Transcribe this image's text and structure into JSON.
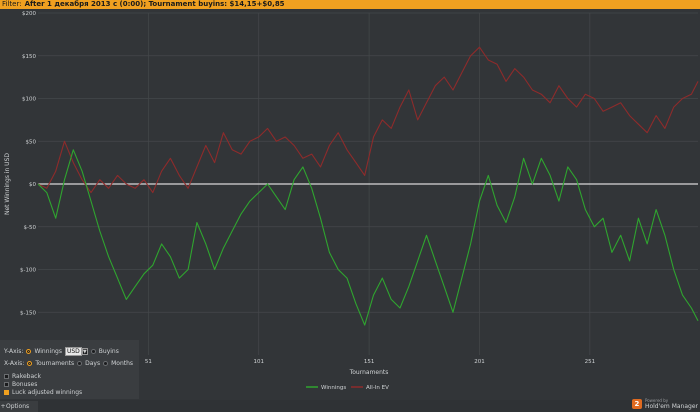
{
  "filter": {
    "label": "Filter:",
    "text": "After 1 декабря 2013 с (0:00); Tournament buyins: $14,15+$0,85"
  },
  "colors": {
    "winnings": "#2fa52f",
    "allin_ev": "#8e2b2b",
    "zero_line": "#d8d8d8",
    "grid": "#45484b",
    "accent": "#f0a020"
  },
  "chart_data": {
    "type": "line",
    "xlabel": "Tournaments",
    "ylabel": "Net Winnings in USD",
    "ylim": [
      -200,
      200
    ],
    "xlim": [
      1,
      300
    ],
    "yticks": [
      200,
      150,
      100,
      50,
      0,
      -50,
      -100,
      -150
    ],
    "ytick_labels": [
      "$200",
      "$150",
      "$100",
      "$50",
      "$0",
      "$-50",
      "$-100",
      "$-150"
    ],
    "xticks": [
      51,
      101,
      151,
      201,
      251
    ],
    "xtick_labels": [
      "51",
      "101",
      "151",
      "201",
      "251"
    ],
    "grid": true,
    "legend": "bottom-center",
    "series": [
      {
        "name": "Winnings",
        "x": [
          1,
          5,
          9,
          13,
          17,
          21,
          25,
          29,
          33,
          37,
          41,
          45,
          49,
          53,
          57,
          61,
          65,
          69,
          73,
          77,
          81,
          85,
          89,
          93,
          97,
          101,
          105,
          109,
          113,
          117,
          121,
          125,
          129,
          133,
          137,
          141,
          145,
          149,
          153,
          157,
          161,
          165,
          169,
          173,
          177,
          181,
          185,
          189,
          193,
          197,
          201,
          205,
          209,
          213,
          217,
          221,
          225,
          229,
          233,
          237,
          241,
          245,
          249,
          253,
          257,
          261,
          265,
          269,
          273,
          277,
          281,
          285,
          289,
          293,
          297,
          300
        ],
        "values": [
          0,
          -10,
          -40,
          5,
          40,
          15,
          -20,
          -55,
          -85,
          -110,
          -135,
          -120,
          -105,
          -95,
          -70,
          -85,
          -110,
          -100,
          -45,
          -70,
          -100,
          -75,
          -55,
          -35,
          -20,
          -10,
          0,
          -15,
          -30,
          5,
          20,
          -5,
          -40,
          -80,
          -100,
          -110,
          -140,
          -165,
          -130,
          -110,
          -135,
          -145,
          -120,
          -90,
          -60,
          -90,
          -120,
          -150,
          -110,
          -70,
          -20,
          10,
          -25,
          -45,
          -15,
          30,
          0,
          30,
          10,
          -20,
          20,
          5,
          -30,
          -50,
          -40,
          -80,
          -60,
          -90,
          -40,
          -70,
          -30,
          -60,
          -100,
          -130,
          -145,
          -160
        ]
      },
      {
        "name": "All-In EV",
        "x": [
          1,
          5,
          9,
          13,
          17,
          21,
          25,
          29,
          33,
          37,
          41,
          45,
          49,
          53,
          57,
          61,
          65,
          69,
          73,
          77,
          81,
          85,
          89,
          93,
          97,
          101,
          105,
          109,
          113,
          117,
          121,
          125,
          129,
          133,
          137,
          141,
          145,
          149,
          153,
          157,
          161,
          165,
          169,
          173,
          177,
          181,
          185,
          189,
          193,
          197,
          201,
          205,
          209,
          213,
          217,
          221,
          225,
          229,
          233,
          237,
          241,
          245,
          249,
          253,
          257,
          261,
          265,
          269,
          273,
          277,
          281,
          285,
          289,
          293,
          297,
          300
        ],
        "values": [
          0,
          -5,
          15,
          50,
          25,
          5,
          -10,
          5,
          -5,
          10,
          0,
          -5,
          5,
          -10,
          15,
          30,
          10,
          -5,
          20,
          45,
          25,
          60,
          40,
          35,
          50,
          55,
          65,
          50,
          55,
          45,
          30,
          35,
          20,
          45,
          60,
          40,
          25,
          10,
          55,
          75,
          65,
          90,
          110,
          75,
          95,
          115,
          125,
          110,
          130,
          150,
          160,
          145,
          140,
          120,
          135,
          125,
          110,
          105,
          95,
          115,
          100,
          90,
          105,
          100,
          85,
          90,
          95,
          80,
          70,
          60,
          80,
          65,
          90,
          100,
          105,
          120
        ]
      }
    ]
  },
  "controls": {
    "y_axis_label": "Y-Axis:",
    "winnings_label": "Winnings",
    "currency": "USD",
    "buyins_label": "Buyins",
    "x_axis_label": "X-Axis:",
    "tournaments_label": "Tournaments",
    "days_label": "Days",
    "months_label": "Months",
    "rakeback_label": "Rakeback",
    "bonuses_label": "Bonuses",
    "luck_label": "Luck adjusted winnings"
  },
  "options": {
    "label": "Options"
  },
  "branding": {
    "powered_by": "Powered by",
    "product": "Hold'em Manager",
    "logo_text": "2"
  }
}
